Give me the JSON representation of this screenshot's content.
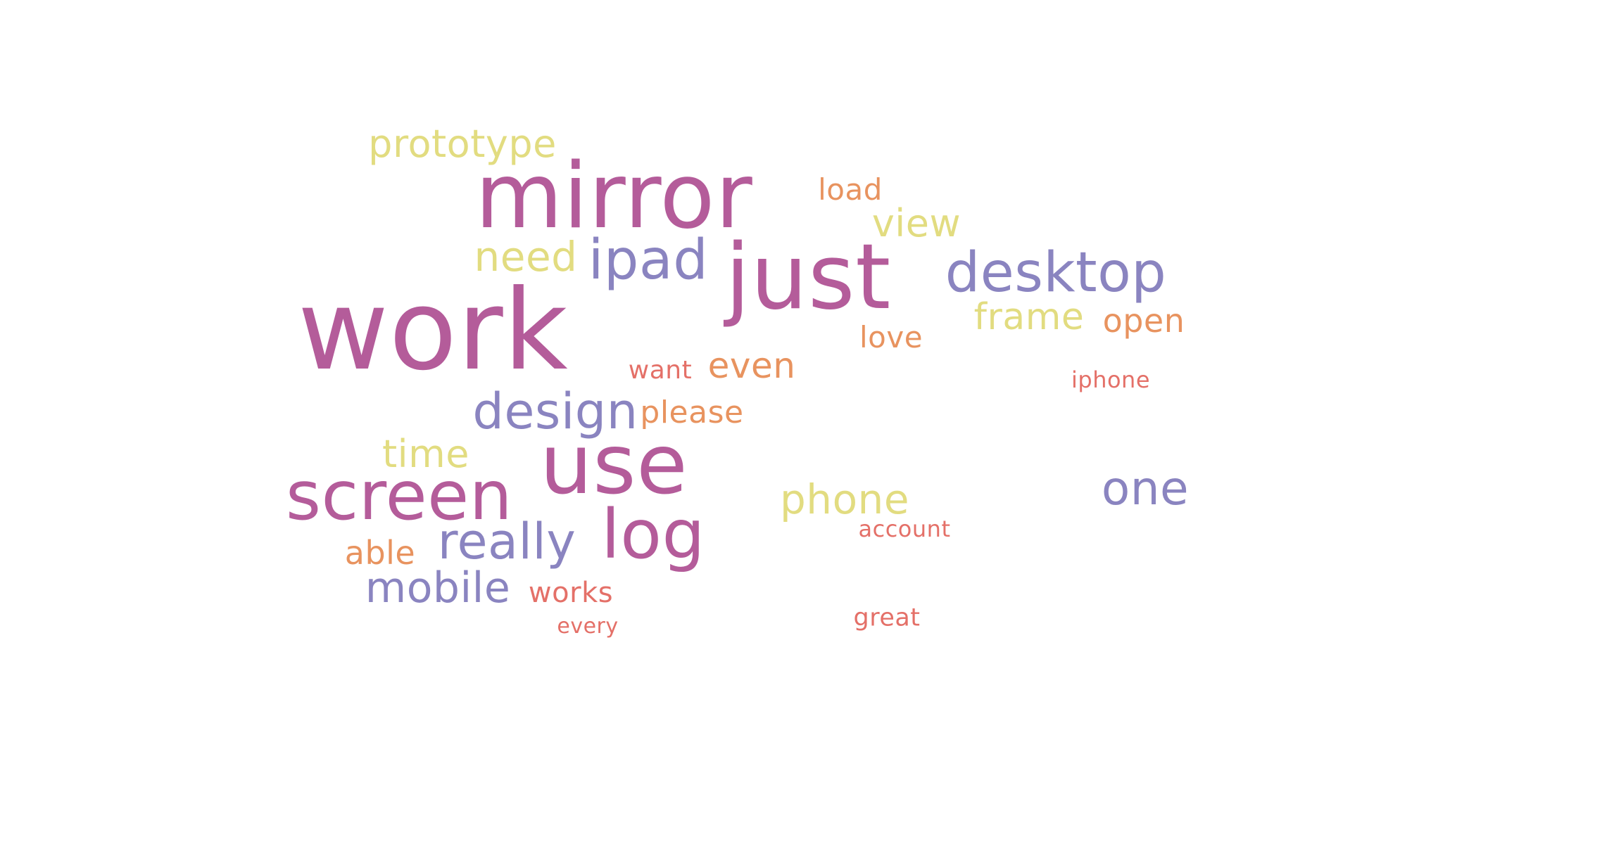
{
  "palette": {
    "magenta": "#b45c9a",
    "purple": "#8a84c0",
    "yellow": "#e2dc80",
    "orange": "#e8935f",
    "red": "#e47068"
  },
  "words": [
    {
      "text": "work",
      "weight": 1.0,
      "color": "magenta"
    },
    {
      "text": "mirror",
      "weight": 0.86,
      "color": "magenta"
    },
    {
      "text": "just",
      "weight": 0.86,
      "color": "magenta"
    },
    {
      "text": "use",
      "weight": 0.82,
      "color": "magenta"
    },
    {
      "text": "screen",
      "weight": 0.7,
      "color": "magenta"
    },
    {
      "text": "log",
      "weight": 0.68,
      "color": "magenta"
    },
    {
      "text": "desktop",
      "weight": 0.58,
      "color": "purple"
    },
    {
      "text": "ipad",
      "weight": 0.58,
      "color": "purple"
    },
    {
      "text": "design",
      "weight": 0.54,
      "color": "purple"
    },
    {
      "text": "really",
      "weight": 0.52,
      "color": "purple"
    },
    {
      "text": "one",
      "weight": 0.5,
      "color": "purple"
    },
    {
      "text": "mobile",
      "weight": 0.46,
      "color": "purple"
    },
    {
      "text": "phone",
      "weight": 0.44,
      "color": "yellow"
    },
    {
      "text": "need",
      "weight": 0.44,
      "color": "yellow"
    },
    {
      "text": "prototype",
      "weight": 0.42,
      "color": "yellow"
    },
    {
      "text": "time",
      "weight": 0.42,
      "color": "yellow"
    },
    {
      "text": "view",
      "weight": 0.42,
      "color": "yellow"
    },
    {
      "text": "frame",
      "weight": 0.4,
      "color": "yellow"
    },
    {
      "text": "even",
      "weight": 0.38,
      "color": "orange"
    },
    {
      "text": "open",
      "weight": 0.36,
      "color": "orange"
    },
    {
      "text": "able",
      "weight": 0.36,
      "color": "orange"
    },
    {
      "text": "please",
      "weight": 0.34,
      "color": "orange"
    },
    {
      "text": "load",
      "weight": 0.32,
      "color": "orange"
    },
    {
      "text": "love",
      "weight": 0.32,
      "color": "orange"
    },
    {
      "text": "works",
      "weight": 0.3,
      "color": "red"
    },
    {
      "text": "want",
      "weight": 0.28,
      "color": "red"
    },
    {
      "text": "great",
      "weight": 0.27,
      "color": "red"
    },
    {
      "text": "account",
      "weight": 0.26,
      "color": "red"
    },
    {
      "text": "iphone",
      "weight": 0.26,
      "color": "red"
    },
    {
      "text": "every",
      "weight": 0.25,
      "color": "red"
    }
  ]
}
